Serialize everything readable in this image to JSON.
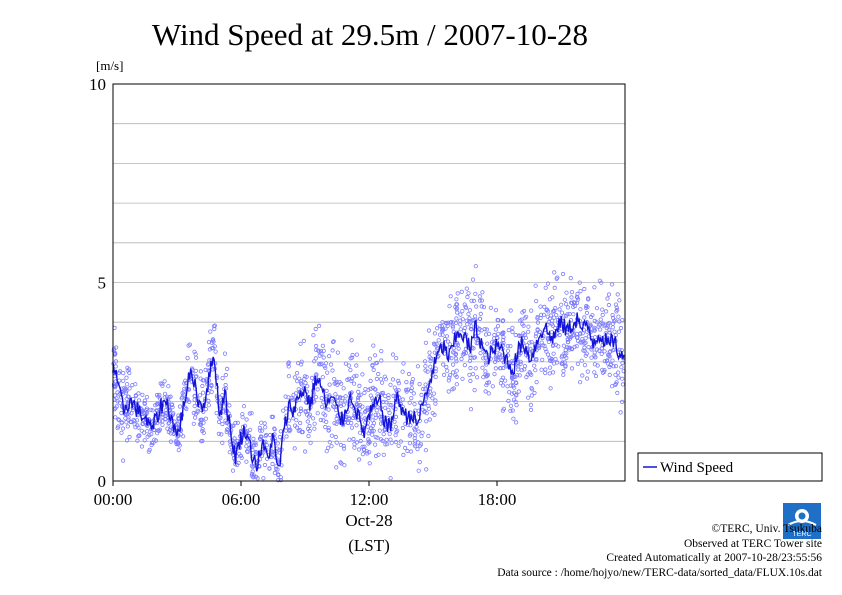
{
  "chart_data": {
    "type": "scatter",
    "title": "Wind Speed at 29.5m / 2007-10-28",
    "ylabel": "[m/s]",
    "ylim": [
      0,
      10
    ],
    "yticks": [
      "0",
      "5",
      "10"
    ],
    "xlim_hours": [
      0,
      24
    ],
    "xticks": [
      {
        "hour": 0,
        "label": "00:00"
      },
      {
        "hour": 6,
        "label": "06:00"
      },
      {
        "hour": 12,
        "label": "12:00"
      },
      {
        "hour": 18,
        "label": "18:00"
      }
    ],
    "date_label": "Oct-28",
    "time_zone_label": "(LST)",
    "grid": true,
    "legend": {
      "position": "right-bottom",
      "label": "Wind Speed"
    },
    "series": [
      {
        "name": "Wind Speed",
        "x_hours": [
          0.0,
          0.25,
          0.5,
          0.75,
          1.0,
          1.25,
          1.5,
          1.75,
          2.0,
          2.25,
          2.5,
          2.75,
          3.0,
          3.25,
          3.5,
          3.75,
          4.0,
          4.25,
          4.5,
          4.75,
          5.0,
          5.25,
          5.5,
          5.75,
          6.0,
          6.25,
          6.5,
          6.75,
          7.0,
          7.25,
          7.5,
          7.75,
          8.0,
          8.25,
          8.5,
          8.75,
          9.0,
          9.25,
          9.5,
          9.75,
          10.0,
          10.25,
          10.5,
          10.75,
          11.0,
          11.25,
          11.5,
          11.75,
          12.0,
          12.25,
          12.5,
          12.75,
          13.0,
          13.25,
          13.5,
          13.75,
          14.0,
          14.25,
          14.5,
          14.75,
          15.0,
          15.25,
          15.5,
          15.75,
          16.0,
          16.25,
          16.5,
          16.75,
          17.0,
          17.25,
          17.5,
          17.75,
          18.0,
          18.25,
          18.5,
          18.75,
          19.0,
          19.25,
          19.5,
          19.75,
          20.0,
          20.25,
          20.5,
          20.75,
          21.0,
          21.25,
          21.5,
          21.75,
          22.0,
          22.25,
          22.5,
          22.75,
          23.0,
          23.25,
          23.5,
          23.75
        ],
        "mean_values": [
          3.0,
          2.3,
          1.8,
          2.0,
          1.9,
          1.7,
          1.6,
          1.3,
          1.5,
          1.9,
          2.0,
          1.6,
          1.1,
          1.7,
          2.5,
          2.7,
          2.0,
          1.9,
          2.6,
          3.2,
          1.6,
          2.3,
          1.2,
          0.6,
          1.1,
          1.3,
          0.7,
          0.4,
          0.9,
          0.6,
          1.1,
          0.2,
          1.2,
          1.9,
          1.8,
          2.2,
          2.3,
          1.9,
          2.6,
          2.4,
          1.9,
          2.1,
          1.8,
          1.5,
          2.0,
          2.1,
          1.6,
          1.2,
          1.6,
          1.9,
          2.0,
          1.5,
          1.3,
          2.1,
          1.9,
          1.6,
          1.7,
          1.4,
          1.9,
          2.3,
          2.8,
          3.2,
          3.4,
          3.1,
          3.5,
          3.8,
          3.6,
          3.3,
          3.9,
          3.5,
          3.1,
          3.2,
          3.4,
          3.3,
          3.0,
          2.8,
          3.3,
          3.5,
          3.1,
          3.3,
          3.7,
          3.9,
          3.6,
          3.7,
          4.0,
          3.8,
          3.9,
          4.1,
          3.8,
          3.9,
          3.5,
          3.7,
          3.6,
          3.4,
          3.6,
          3.1
        ],
        "spread": [
          0.9,
          0.8,
          0.7,
          0.6,
          0.6,
          0.5,
          0.5,
          0.5,
          0.5,
          0.5,
          0.5,
          0.5,
          0.4,
          0.5,
          0.6,
          0.6,
          0.6,
          0.6,
          0.7,
          0.7,
          0.6,
          0.7,
          0.5,
          0.5,
          0.5,
          0.5,
          0.5,
          0.4,
          0.5,
          0.5,
          0.5,
          0.4,
          0.6,
          0.8,
          0.9,
          0.9,
          1.0,
          1.0,
          1.0,
          1.0,
          1.0,
          1.0,
          0.9,
          0.9,
          0.9,
          0.9,
          0.9,
          0.8,
          0.9,
          0.9,
          0.9,
          0.9,
          0.9,
          0.9,
          0.9,
          0.9,
          0.9,
          0.9,
          0.9,
          0.9,
          0.9,
          0.9,
          1.0,
          1.0,
          1.0,
          1.0,
          1.0,
          1.0,
          1.0,
          0.9,
          0.9,
          0.9,
          0.9,
          0.9,
          0.9,
          0.9,
          0.9,
          0.9,
          0.9,
          0.9,
          0.9,
          0.9,
          0.9,
          0.9,
          0.9,
          0.9,
          0.9,
          0.9,
          0.9,
          0.9,
          0.9,
          0.9,
          0.9,
          0.9,
          0.9,
          0.9
        ]
      }
    ],
    "colors": {
      "points": "#7b7bff",
      "line": "#1414d8",
      "grid": "#b4b4b4"
    }
  },
  "footer": {
    "copyright": "©TERC, Univ. Tsukuba",
    "observed": "Observed at TERC Tower site",
    "created": "Created Automatically at 2007-10-28/23:55:56",
    "source": "Data source : /home/hojyo/new/TERC-data/sorted_data/FLUX.10s.dat"
  },
  "logo": {
    "icon": "terc-logo-icon",
    "text": "TERC"
  }
}
